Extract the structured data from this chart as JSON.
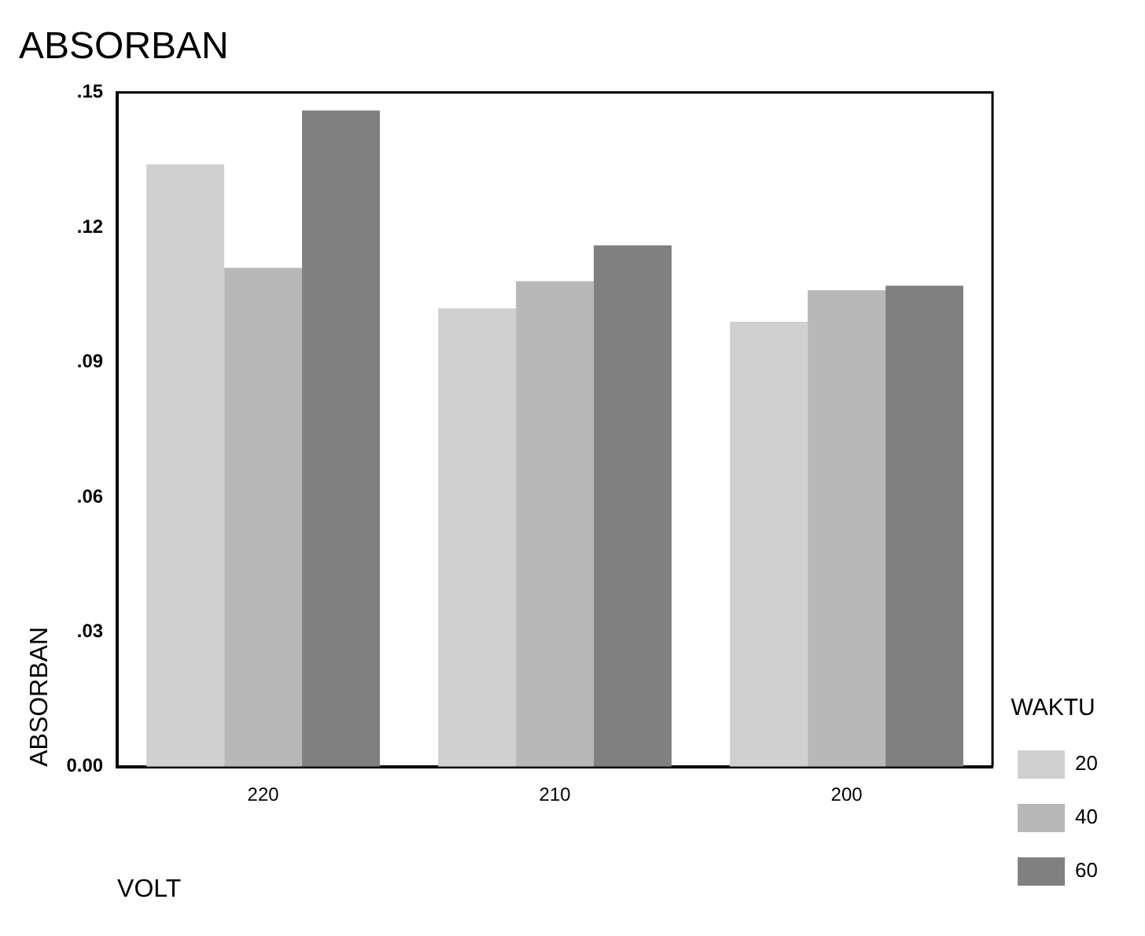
{
  "chart_data": {
    "type": "bar",
    "title": "ABSORBAN",
    "xlabel": "VOLT",
    "ylabel": "ABSORBAN",
    "legend_title": "WAKTU",
    "categories": [
      "220",
      "210",
      "200"
    ],
    "series": [
      {
        "name": "20",
        "color": "#d0d0d0",
        "values": [
          0.134,
          0.102,
          0.099
        ]
      },
      {
        "name": "40",
        "color": "#b8b8b8",
        "values": [
          0.111,
          0.108,
          0.106
        ]
      },
      {
        "name": "60",
        "color": "#808080",
        "values": [
          0.146,
          0.116,
          0.107
        ]
      }
    ],
    "ylim": [
      0,
      0.15
    ],
    "yticks": [
      {
        "value": 0,
        "label": "0.00"
      },
      {
        "value": 0.03,
        "label": ".03"
      },
      {
        "value": 0.06,
        "label": ".06"
      },
      {
        "value": 0.09,
        "label": ".09"
      },
      {
        "value": 0.12,
        "label": ".12"
      },
      {
        "value": 0.15,
        "label": ".15"
      }
    ],
    "grid": false,
    "legend": "right"
  }
}
